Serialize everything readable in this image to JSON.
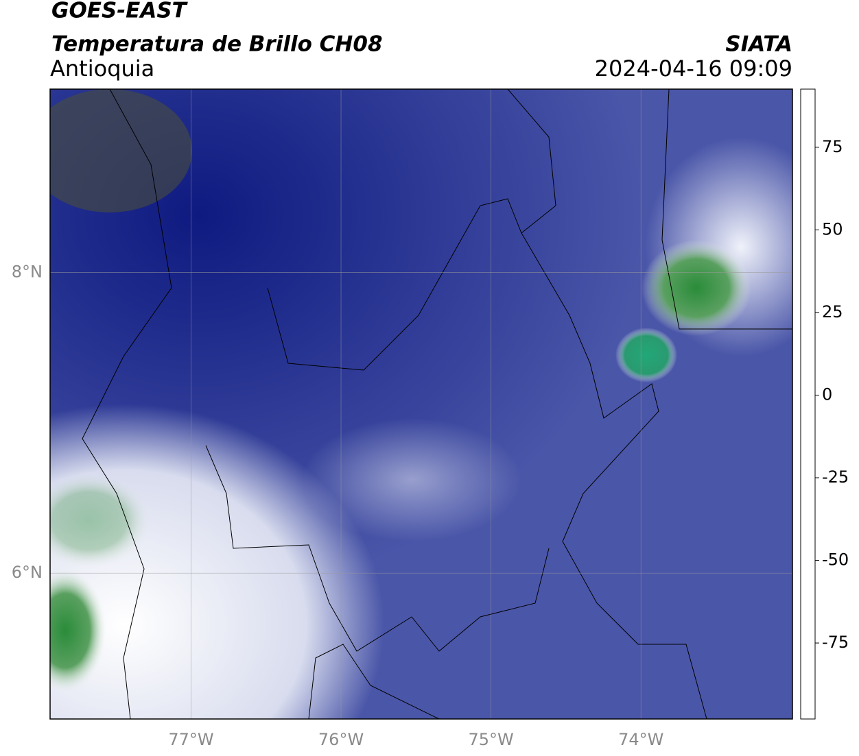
{
  "header": {
    "title": "GOES-EAST",
    "subtitle": "Temperatura de Brillo CH08",
    "region": "Antioquia",
    "agency": "SIATA",
    "datetime": "2024-04-16 09:09"
  },
  "map": {
    "xlim": [
      -77.94,
      -72.99
    ],
    "ylim": [
      5.03,
      9.22
    ],
    "xticks": [
      {
        "value": -77,
        "label": "77°W"
      },
      {
        "value": -76,
        "label": "76°W"
      },
      {
        "value": -75,
        "label": "75°W"
      },
      {
        "value": -74,
        "label": "74°W"
      }
    ],
    "yticks": [
      {
        "value": 8,
        "label": "8°N"
      },
      {
        "value": 6,
        "label": "6°N"
      }
    ],
    "grid": true
  },
  "colorbar": {
    "lim": [
      -98,
      92.6
    ],
    "ticks": [
      75,
      50,
      25,
      0,
      -25,
      -50,
      -75
    ],
    "colormap": [
      {
        "value": -98,
        "color": "#ffffff"
      },
      {
        "value": -94,
        "color": "#ffffff"
      },
      {
        "value": -93.9,
        "color": "#00e8d8"
      },
      {
        "value": -80,
        "color": "#2aa878"
      },
      {
        "value": -65,
        "color": "#2a7a1e"
      },
      {
        "value": -55,
        "color": "#a8c898"
      },
      {
        "value": -50,
        "color": "#ffffff"
      },
      {
        "value": -42,
        "color": "#8c94cc"
      },
      {
        "value": -30,
        "color": "#14208a"
      },
      {
        "value": -24,
        "color": "#1a1a50"
      },
      {
        "value": -20,
        "color": "#5a5a4a"
      },
      {
        "value": -10,
        "color": "#f0f000"
      },
      {
        "value": 0,
        "color": "#ff9a00"
      },
      {
        "value": 8.5,
        "color": "#ff1800"
      },
      {
        "value": 8.6,
        "color": "#000000"
      },
      {
        "value": 92.6,
        "color": "#000000"
      }
    ]
  }
}
